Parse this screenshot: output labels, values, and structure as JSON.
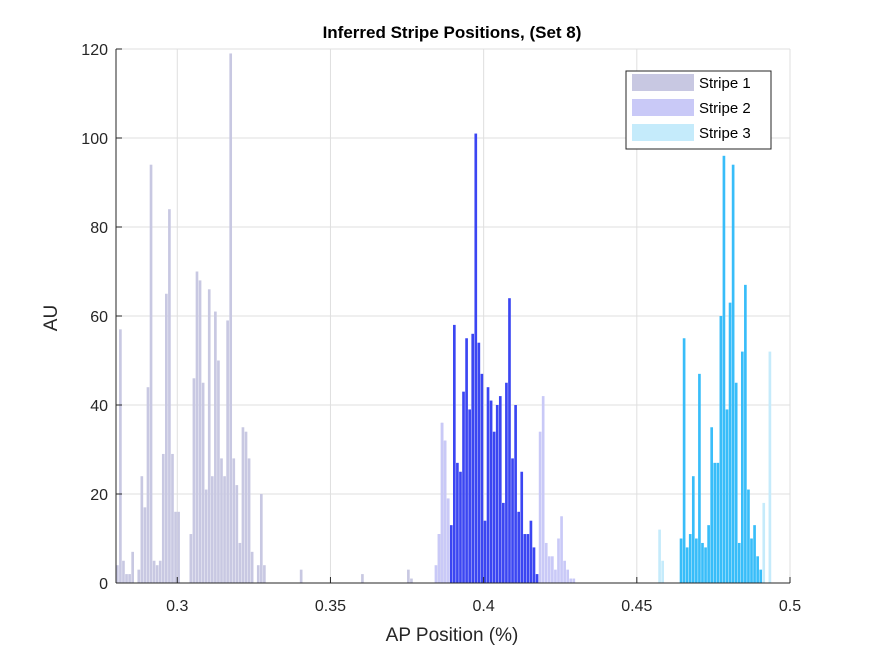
{
  "chart_data": {
    "type": "bar",
    "title": "Inferred Stripe Positions,  (Set 8)",
    "xlabel": "AP Position (%)",
    "ylabel": "AU",
    "xlim": [
      0.28,
      0.5
    ],
    "ylim": [
      0,
      120
    ],
    "xticks": [
      "0.3",
      "0.35",
      "0.4",
      "0.45",
      "0.5"
    ],
    "xtick_values": [
      0.3,
      0.35,
      0.4,
      0.45,
      0.5
    ],
    "yticks": [
      "0",
      "20",
      "40",
      "60",
      "80",
      "100",
      "120"
    ],
    "ytick_values": [
      0,
      20,
      40,
      60,
      80,
      100,
      120
    ],
    "grid": true,
    "legend_position": "top-right",
    "bin_width": 0.001,
    "series": [
      {
        "name": "Stripe 1",
        "color": "#c8c8e2",
        "points": [
          [
            0.2805,
            4
          ],
          [
            0.2815,
            57
          ],
          [
            0.2825,
            5
          ],
          [
            0.2835,
            2
          ],
          [
            0.2845,
            2
          ],
          [
            0.2855,
            7
          ],
          [
            0.2875,
            3
          ],
          [
            0.2885,
            24
          ],
          [
            0.2895,
            17
          ],
          [
            0.2905,
            44
          ],
          [
            0.2915,
            94
          ],
          [
            0.2925,
            5
          ],
          [
            0.2935,
            4
          ],
          [
            0.2945,
            5
          ],
          [
            0.2955,
            29
          ],
          [
            0.2965,
            65
          ],
          [
            0.2975,
            84
          ],
          [
            0.2985,
            29
          ],
          [
            0.2995,
            16
          ],
          [
            0.3005,
            16
          ],
          [
            0.3045,
            11
          ],
          [
            0.3055,
            46
          ],
          [
            0.3065,
            70
          ],
          [
            0.3075,
            68
          ],
          [
            0.3085,
            45
          ],
          [
            0.3095,
            21
          ],
          [
            0.3105,
            66
          ],
          [
            0.3115,
            24
          ],
          [
            0.3125,
            61
          ],
          [
            0.3135,
            50
          ],
          [
            0.3145,
            28
          ],
          [
            0.3155,
            24
          ],
          [
            0.3165,
            59
          ],
          [
            0.3175,
            119
          ],
          [
            0.3185,
            28
          ],
          [
            0.3195,
            22
          ],
          [
            0.3205,
            9
          ],
          [
            0.3215,
            35
          ],
          [
            0.3225,
            34
          ],
          [
            0.3235,
            28
          ],
          [
            0.3245,
            7
          ],
          [
            0.3265,
            4
          ],
          [
            0.3275,
            20
          ],
          [
            0.3285,
            4
          ],
          [
            0.3405,
            3
          ],
          [
            0.3605,
            2
          ],
          [
            0.3755,
            3
          ],
          [
            0.3765,
            1
          ],
          [
            0.3855,
            11
          ],
          [
            0.3865,
            36
          ],
          [
            0.3875,
            32
          ],
          [
            0.3885,
            19
          ]
        ]
      },
      {
        "name": "Stripe 2",
        "color": "#c9c9f7",
        "points": [
          [
            0.3845,
            4
          ],
          [
            0.3855,
            11
          ],
          [
            0.3865,
            36
          ],
          [
            0.3875,
            32
          ],
          [
            0.3885,
            19
          ],
          [
            0.4185,
            34
          ],
          [
            0.4195,
            42
          ],
          [
            0.4205,
            9
          ],
          [
            0.4215,
            6
          ],
          [
            0.4225,
            6
          ],
          [
            0.4235,
            3
          ],
          [
            0.4245,
            10
          ],
          [
            0.4255,
            15
          ],
          [
            0.4265,
            5
          ],
          [
            0.4275,
            3
          ],
          [
            0.4285,
            1
          ],
          [
            0.4295,
            1
          ]
        ]
      },
      {
        "name": "Stripe 3",
        "color": "#c5ebfb",
        "points": [
          [
            0.4575,
            12
          ],
          [
            0.4585,
            5
          ],
          [
            0.4915,
            18
          ],
          [
            0.4935,
            52
          ]
        ]
      },
      {
        "name": "",
        "color": "#3b46f2",
        "points": [
          [
            0.3895,
            13
          ],
          [
            0.3905,
            58
          ],
          [
            0.3915,
            27
          ],
          [
            0.3925,
            25
          ],
          [
            0.3935,
            43
          ],
          [
            0.3945,
            55
          ],
          [
            0.3955,
            39
          ],
          [
            0.3965,
            56
          ],
          [
            0.3975,
            101
          ],
          [
            0.3985,
            54
          ],
          [
            0.3995,
            47
          ],
          [
            0.4005,
            14
          ],
          [
            0.4015,
            44
          ],
          [
            0.4025,
            41
          ],
          [
            0.4035,
            34
          ],
          [
            0.4045,
            40
          ],
          [
            0.4055,
            42
          ],
          [
            0.4065,
            18
          ],
          [
            0.4075,
            45
          ],
          [
            0.4085,
            64
          ],
          [
            0.4095,
            28
          ],
          [
            0.4105,
            40
          ],
          [
            0.4115,
            16
          ],
          [
            0.4125,
            25
          ],
          [
            0.4135,
            11
          ],
          [
            0.4145,
            11
          ],
          [
            0.4155,
            14
          ],
          [
            0.4165,
            8
          ],
          [
            0.4175,
            2
          ]
        ]
      },
      {
        "name": "",
        "color": "#38bdf9",
        "points": [
          [
            0.4645,
            10
          ],
          [
            0.4655,
            55
          ],
          [
            0.4665,
            8
          ],
          [
            0.4675,
            11
          ],
          [
            0.4685,
            24
          ],
          [
            0.4695,
            10
          ],
          [
            0.4705,
            47
          ],
          [
            0.4715,
            9
          ],
          [
            0.4725,
            8
          ],
          [
            0.4735,
            13
          ],
          [
            0.4745,
            35
          ],
          [
            0.4755,
            27
          ],
          [
            0.4765,
            27
          ],
          [
            0.4775,
            60
          ],
          [
            0.4785,
            96
          ],
          [
            0.4795,
            39
          ],
          [
            0.4805,
            63
          ],
          [
            0.4815,
            94
          ],
          [
            0.4825,
            45
          ],
          [
            0.4835,
            9
          ],
          [
            0.4845,
            52
          ],
          [
            0.4855,
            67
          ],
          [
            0.4865,
            21
          ],
          [
            0.4875,
            10
          ],
          [
            0.4885,
            13
          ],
          [
            0.4895,
            6
          ],
          [
            0.4905,
            3
          ]
        ]
      }
    ]
  }
}
